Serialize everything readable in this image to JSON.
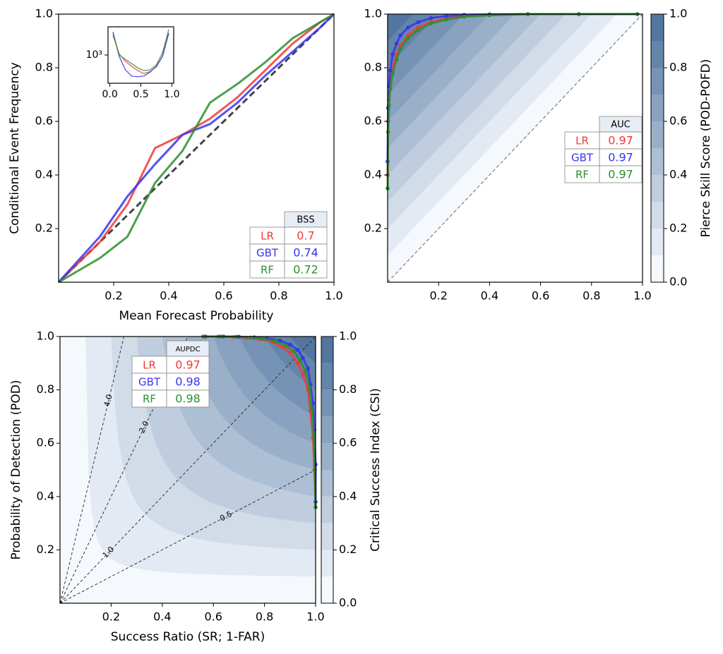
{
  "chart_data": [
    {
      "type": "line",
      "xlabel": "Mean Forecast Probability",
      "ylabel": "Conditional Event Frequency",
      "xlim": [
        0,
        1
      ],
      "ylim": [
        0,
        1
      ],
      "xticks": [
        0.2,
        0.4,
        0.6,
        0.8,
        {
          "value": 1,
          "label": "1.0"
        }
      ],
      "yticks": [
        0.2,
        0.4,
        0.6,
        0.8,
        {
          "value": 1,
          "label": "1.0"
        }
      ],
      "diagonal": true,
      "x": [
        0,
        0.15,
        0.25,
        0.35,
        0.45,
        0.55,
        0.65,
        0.75,
        0.85,
        0.95,
        1
      ],
      "series": [
        {
          "name": "LR",
          "color": "#f03a3a",
          "values": [
            0,
            0.15,
            0.29,
            0.5,
            0.55,
            0.61,
            0.69,
            0.79,
            0.89,
            0.97,
            1
          ]
        },
        {
          "name": "GBT",
          "color": "#3535f0",
          "values": [
            0,
            0.17,
            0.32,
            0.44,
            0.55,
            0.59,
            0.67,
            0.77,
            0.86,
            0.95,
            1
          ]
        },
        {
          "name": "RF",
          "color": "#2e8f2e",
          "values": [
            0,
            0.09,
            0.17,
            0.37,
            0.49,
            0.67,
            0.74,
            0.82,
            0.91,
            0.97,
            1
          ]
        }
      ],
      "table": {
        "header": "BSS",
        "values": [
          0.7,
          0.74,
          0.72
        ]
      }
    },
    {
      "type": "line",
      "xlim": [
        -0.03,
        1.03
      ],
      "ylim": [
        100,
        10000
      ],
      "ylog": true,
      "xticks": [
        {
          "value": 0,
          "label": "0.0"
        },
        0.5,
        {
          "value": 1,
          "label": "1.0"
        }
      ],
      "yticks": [
        {
          "value": 1000,
          "label": "10³"
        }
      ],
      "x": [
        0.05,
        0.15,
        0.25,
        0.35,
        0.45,
        0.55,
        0.65,
        0.75,
        0.85,
        0.95
      ],
      "series": [
        {
          "color": "#f03a3a",
          "values": [
            5000,
            1100,
            600,
            400,
            280,
            220,
            260,
            380,
            900,
            6000
          ]
        },
        {
          "color": "#3535f0",
          "values": [
            6600,
            900,
            300,
            180,
            170,
            180,
            250,
            400,
            900,
            6000
          ]
        },
        {
          "color": "#2e8f2e",
          "values": [
            6000,
            1000,
            700,
            500,
            350,
            280,
            300,
            450,
            1200,
            8000
          ]
        }
      ]
    },
    {
      "type": "roc",
      "xlim": [
        0,
        1
      ],
      "ylim": [
        0,
        1
      ],
      "xticks": [
        0.2,
        0.4,
        0.6,
        0.8,
        {
          "value": 1,
          "label": "1.0"
        }
      ],
      "yticks": [
        0.2,
        0.4,
        0.6,
        0.8,
        {
          "value": 1,
          "label": "1.0"
        }
      ],
      "diagonal": true,
      "levels": [
        0,
        0.1,
        0.2,
        0.3,
        0.4,
        0.5,
        0.6,
        0.7,
        0.8,
        0.9,
        1
      ],
      "colors": [
        "#f5f9fd",
        "#5276a0"
      ],
      "colorbar": {
        "label": "Pierce Skill Score (POD-POFD)",
        "ticks": [
          {
            "value": 0,
            "label": "0.0"
          },
          0.2,
          0.4,
          0.6,
          0.8,
          {
            "value": 1,
            "label": "1.0"
          }
        ]
      },
      "series": [
        {
          "name": "LR",
          "color": "#f03a3a",
          "x": [
            0,
            0.002,
            0.005,
            0.01,
            0.02,
            0.035,
            0.05,
            0.08,
            0.12,
            0.17,
            0.23,
            0.3,
            0.4,
            0.55,
            0.75,
            0.98
          ],
          "values": [
            0.4,
            0.6,
            0.68,
            0.74,
            0.8,
            0.85,
            0.88,
            0.92,
            0.95,
            0.97,
            0.985,
            0.993,
            0.997,
            1,
            1,
            1
          ]
        },
        {
          "name": "GBT",
          "color": "#3535f0",
          "x": [
            0,
            0.002,
            0.005,
            0.01,
            0.02,
            0.035,
            0.05,
            0.08,
            0.12,
            0.17,
            0.23,
            0.3,
            0.4,
            0.55,
            0.75,
            0.98
          ],
          "values": [
            0.45,
            0.65,
            0.73,
            0.79,
            0.85,
            0.89,
            0.92,
            0.95,
            0.97,
            0.985,
            0.993,
            0.997,
            0.999,
            1,
            1,
            1
          ]
        },
        {
          "name": "RF",
          "color": "#2e8f2e",
          "x": [
            0,
            0.002,
            0.005,
            0.01,
            0.02,
            0.035,
            0.05,
            0.08,
            0.12,
            0.17,
            0.23,
            0.3,
            0.4,
            0.55,
            0.75,
            0.98
          ],
          "values": [
            0.35,
            0.56,
            0.66,
            0.72,
            0.78,
            0.83,
            0.87,
            0.91,
            0.94,
            0.965,
            0.98,
            0.99,
            0.996,
            1,
            1,
            1
          ]
        }
      ],
      "table": {
        "header": "AUC",
        "values": [
          0.97,
          0.97,
          0.97
        ]
      }
    },
    {
      "type": "performance",
      "xlabel": "Success Ratio (SR; 1-FAR)",
      "ylabel": "Probability of Detection (POD)",
      "xlim": [
        0,
        1
      ],
      "ylim": [
        0,
        1
      ],
      "xticks": [
        0.2,
        0.4,
        0.6,
        0.8,
        {
          "value": 1,
          "label": "1.0"
        }
      ],
      "yticks": [
        0.2,
        0.4,
        0.6,
        0.8,
        {
          "value": 1,
          "label": "1.0"
        }
      ],
      "levels": [
        0,
        0.1,
        0.2,
        0.3,
        0.4,
        0.5,
        0.6,
        0.7,
        0.8,
        0.9,
        1
      ],
      "colors": [
        "#f5f9fd",
        "#5276a0"
      ],
      "bias_lines": [
        0.5,
        {
          "value": 1,
          "label": "1.0"
        },
        {
          "value": 2,
          "label": "2.0"
        },
        {
          "value": 4,
          "label": "4.0"
        }
      ],
      "colorbar": {
        "label": "Critical Success Index (CSI)",
        "ticks": [
          {
            "value": 0,
            "label": "0.0"
          },
          0.2,
          0.4,
          0.6,
          0.8,
          {
            "value": 1,
            "label": "1.0"
          }
        ]
      },
      "series": [
        {
          "name": "LR",
          "color": "#f03a3a",
          "x": [
            0.56,
            0.62,
            0.68,
            0.73,
            0.78,
            0.83,
            0.87,
            0.9,
            0.93,
            0.95,
            0.97,
            0.98,
            0.99,
            0.995,
            1
          ],
          "values": [
            1,
            1,
            0.998,
            0.995,
            0.99,
            0.98,
            0.96,
            0.94,
            0.9,
            0.86,
            0.8,
            0.72,
            0.62,
            0.5,
            0.36
          ]
        },
        {
          "name": "GBT",
          "color": "#3535f0",
          "x": [
            0.57,
            0.64,
            0.7,
            0.76,
            0.81,
            0.86,
            0.9,
            0.93,
            0.95,
            0.97,
            0.98,
            0.99,
            0.995,
            1,
            1
          ],
          "values": [
            1,
            1,
            0.999,
            0.997,
            0.993,
            0.985,
            0.97,
            0.95,
            0.92,
            0.88,
            0.82,
            0.75,
            0.65,
            0.52,
            0.38
          ]
        },
        {
          "name": "RF",
          "color": "#2e8f2e",
          "x": [
            0.565,
            0.63,
            0.69,
            0.745,
            0.795,
            0.845,
            0.885,
            0.915,
            0.94,
            0.96,
            0.975,
            0.985,
            0.993,
            0.998,
            1
          ],
          "values": [
            1,
            1,
            0.999,
            0.996,
            0.991,
            0.982,
            0.965,
            0.945,
            0.91,
            0.87,
            0.81,
            0.73,
            0.63,
            0.5,
            0.36
          ]
        }
      ],
      "table": {
        "header": "AUPDC",
        "values": [
          0.97,
          0.98,
          0.98
        ]
      }
    }
  ]
}
